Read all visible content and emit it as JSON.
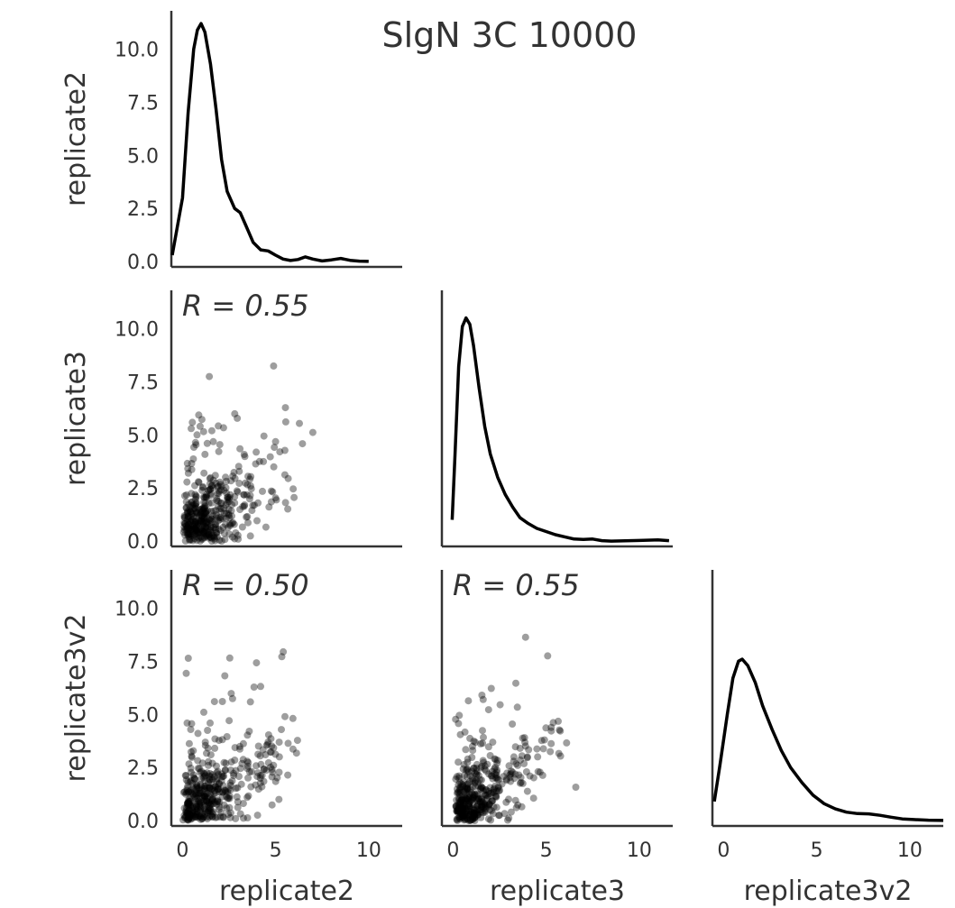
{
  "chart_data": {
    "type": "scatter",
    "title": "SlgN 3C 10000",
    "variables": [
      "replicate2",
      "replicate3",
      "replicate3v2"
    ],
    "x_ticks": [
      "0",
      "5",
      "10"
    ],
    "y_ticks": [
      "0.0",
      "2.5",
      "5.0",
      "7.5",
      "10.0"
    ],
    "xlim": [
      -0.6,
      11.8
    ],
    "ylim": [
      -0.25,
      11.8
    ],
    "correlations": [
      {
        "pair": [
          "replicate2",
          "replicate3"
        ],
        "label": "R = 0.55"
      },
      {
        "pair": [
          "replicate2",
          "replicate3v2"
        ],
        "label": "R = 0.50"
      },
      {
        "pair": [
          "replicate3",
          "replicate3v2"
        ],
        "label": "R = 0.55"
      }
    ],
    "density_curves": {
      "replicate2": {
        "x": [
          -0.55,
          0,
          0.3,
          0.6,
          0.8,
          1.0,
          1.2,
          1.5,
          1.8,
          2.1,
          2.4,
          2.8,
          3.1,
          3.4,
          3.8,
          4.2,
          4.6,
          5.0,
          5.4,
          5.8,
          6.2,
          6.6,
          7.0,
          7.5,
          8.0,
          8.5,
          9.0,
          9.5,
          10.0
        ],
        "y": [
          0.3,
          3.0,
          7.0,
          10.0,
          10.9,
          11.2,
          10.8,
          9.3,
          7.2,
          4.8,
          3.3,
          2.5,
          2.3,
          1.7,
          0.9,
          0.55,
          0.5,
          0.3,
          0.12,
          0.05,
          0.1,
          0.22,
          0.12,
          0.03,
          0.08,
          0.15,
          0.06,
          0.02,
          0.01
        ]
      },
      "replicate3": {
        "x": [
          -0.05,
          0.1,
          0.3,
          0.5,
          0.7,
          0.9,
          1.1,
          1.4,
          1.7,
          2.0,
          2.4,
          2.8,
          3.2,
          3.6,
          4.0,
          4.5,
          5.0,
          5.5,
          6.0,
          6.5,
          7.0,
          7.5,
          8.0,
          8.5,
          9.0,
          10.0,
          11.0,
          11.6
        ],
        "y": [
          1.0,
          4.0,
          8.2,
          10.1,
          10.5,
          10.2,
          9.2,
          7.2,
          5.4,
          4.1,
          3.0,
          2.2,
          1.6,
          1.1,
          0.85,
          0.6,
          0.45,
          0.3,
          0.2,
          0.1,
          0.08,
          0.1,
          0.02,
          0.0,
          0.01,
          0.03,
          0.06,
          0.02
        ]
      },
      "replicate3v2": {
        "x": [
          -0.5,
          -0.2,
          0.2,
          0.5,
          0.8,
          1.0,
          1.3,
          1.7,
          2.1,
          2.6,
          3.1,
          3.6,
          4.2,
          4.8,
          5.4,
          6.0,
          6.6,
          7.2,
          7.8,
          8.4,
          9.0,
          9.6,
          10.2,
          11.0,
          11.8
        ],
        "y": [
          0.9,
          2.6,
          5.0,
          6.7,
          7.5,
          7.6,
          7.3,
          6.5,
          5.4,
          4.3,
          3.3,
          2.5,
          1.8,
          1.2,
          0.8,
          0.55,
          0.4,
          0.33,
          0.32,
          0.25,
          0.16,
          0.08,
          0.05,
          0.02,
          0.01
        ]
      }
    }
  }
}
